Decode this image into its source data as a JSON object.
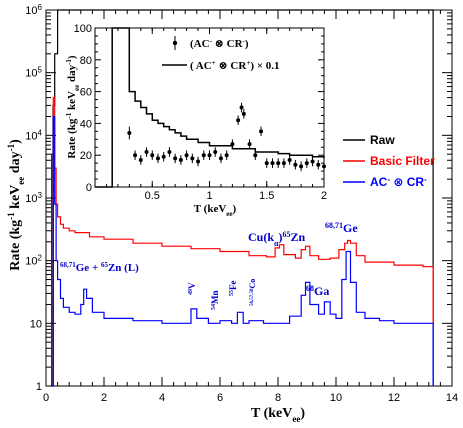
{
  "chart_data": [
    {
      "type": "line",
      "title": "",
      "xlabel": "T (keV",
      "xlabel_sub": "ee",
      "xlabel_close": ")",
      "ylabel": "Rate (kg",
      "ylabel_sup1": "-1",
      "ylabel_mid": " keV",
      "ylabel_sup2": "-1",
      "ylabel_sub": "ee",
      "ylabel_end": " day",
      "ylabel_sup3": "-1",
      "ylabel_close": ")",
      "xlim": [
        0,
        14
      ],
      "ylim": [
        1,
        1000000
      ],
      "yscale": "log",
      "x_ticks": [
        "0",
        "2",
        "4",
        "6",
        "8",
        "10",
        "12",
        "14"
      ],
      "y_ticks": [
        {
          "value": 1,
          "base": "1",
          "exp": ""
        },
        {
          "value": 10,
          "base": "10",
          "exp": ""
        },
        {
          "value": 100,
          "base": "10",
          "exp": "2"
        },
        {
          "value": 1000,
          "base": "10",
          "exp": "3"
        },
        {
          "value": 10000,
          "base": "10",
          "exp": "4"
        },
        {
          "value": 100000,
          "base": "10",
          "exp": "5"
        },
        {
          "value": 1000000,
          "base": "10",
          "exp": "6"
        }
      ],
      "legend_position": "right",
      "series": [
        {
          "name": "Raw",
          "color": "#000000",
          "x": [
            0.16,
            0.2,
            0.24,
            0.3,
            0.4,
            0.5,
            0.7,
            1,
            2,
            4,
            8,
            12,
            13.3,
            13.35
          ],
          "values": [
            1,
            5000,
            30000,
            200000,
            1000000,
            1000000,
            1000000,
            1000000,
            1000000,
            1000000,
            1000000,
            1000000,
            1000000,
            1
          ]
        },
        {
          "name": "Basic Filter",
          "color": "#ff0000",
          "x": [
            0.2,
            0.25,
            0.3,
            0.35,
            0.4,
            0.5,
            0.6,
            0.8,
            1.0,
            1.5,
            2.0,
            3.0,
            4.0,
            5.0,
            6.0,
            7.0,
            7.6,
            7.9,
            8.05,
            8.2,
            8.6,
            8.8,
            8.95,
            9.1,
            9.4,
            9.8,
            10.1,
            10.3,
            10.4,
            10.5,
            10.7,
            11.0,
            12.0,
            13.0,
            13.3,
            13.35
          ],
          "values": [
            1,
            40000,
            3000,
            800,
            500,
            380,
            330,
            300,
            280,
            240,
            220,
            190,
            170,
            155,
            140,
            120,
            115,
            160,
            180,
            125,
            110,
            150,
            170,
            120,
            105,
            110,
            150,
            190,
            210,
            190,
            120,
            95,
            85,
            80,
            80,
            1
          ]
        },
        {
          "name": "AC",
          "name_sup1": "-",
          "name_mid": " ⊗ CR",
          "name_sup2": "-",
          "color": "#0000ff",
          "x": [
            0.2,
            0.25,
            0.3,
            0.35,
            0.4,
            0.5,
            0.6,
            0.8,
            1.0,
            1.2,
            1.3,
            1.4,
            1.6,
            2.0,
            3.0,
            4.0,
            4.8,
            5.0,
            5.2,
            5.6,
            6.0,
            6.4,
            6.6,
            6.8,
            7.0,
            7.5,
            8.0,
            8.4,
            8.8,
            8.95,
            9.1,
            9.4,
            9.6,
            9.8,
            10.0,
            10.2,
            10.35,
            10.5,
            10.7,
            11.0,
            11.5,
            12.0,
            13.0,
            13.3,
            13.35
          ],
          "values": [
            1,
            20000,
            800,
            100,
            50,
            25,
            18,
            15,
            14,
            20,
            35,
            25,
            15,
            12,
            11,
            10,
            10,
            17,
            12,
            10,
            11,
            10,
            15,
            10,
            11,
            10,
            10,
            13,
            28,
            45,
            20,
            14,
            22,
            14,
            12,
            50,
            140,
            45,
            15,
            12,
            11,
            10,
            10,
            10,
            1
          ]
        }
      ],
      "annotations": [
        {
          "text": "68,71",
          "text2": "Ge + ",
          "text3": "65",
          "text4": "Zn (L)",
          "x": 1.3,
          "y": 60
        },
        {
          "text": "49",
          "text2": "V",
          "x": 4.95,
          "y": 20
        },
        {
          "text": "54",
          "text2": "Mn",
          "x": 5.5,
          "y": 16
        },
        {
          "text": "55",
          "text2": "Fe",
          "x": 6.4,
          "y": 18
        },
        {
          "text": "56,57,58",
          "text2": "Co",
          "x": 7.0,
          "y": 20
        },
        {
          "text": "Cu(k",
          "text2": "α",
          "text3": ")",
          "text4": "65",
          "text5": "Zn",
          "x": 8.1,
          "y": 150
        },
        {
          "text": "68",
          "text2": "Ga",
          "x": 9.3,
          "y": 45
        },
        {
          "text": "68,71",
          "text2": "Ge",
          "x": 10.25,
          "y": 280
        }
      ]
    },
    {
      "type": "scatter",
      "title": "",
      "xlabel": "T (keV",
      "xlabel_sub": "ee",
      "xlabel_close": ")",
      "ylabel": "Rate (kg",
      "ylabel_sup1": "-1",
      "ylabel_mid": " keV",
      "ylabel_sup2": "-1",
      "ylabel_sub": "ee",
      "ylabel_end": " day",
      "ylabel_sup3": "-1",
      "ylabel_close": ")",
      "xlim": [
        0.0,
        2.0
      ],
      "ylim": [
        0,
        100
      ],
      "x_ticks": [
        "0.5",
        "1",
        "1.5",
        "2"
      ],
      "x_tick_values": [
        0.5,
        1.0,
        1.5,
        2.0
      ],
      "y_ticks": [
        "0",
        "20",
        "40",
        "60",
        "80",
        "100"
      ],
      "y_tick_values": [
        0,
        20,
        40,
        60,
        80,
        100
      ],
      "legend_position": "top",
      "series": [
        {
          "name": "(AC",
          "name_sup1": "-",
          "name_mid": " ⊗ CR",
          "name_sup2": "-",
          "name_end": ")",
          "color": "#000000",
          "x": [
            0.3,
            0.35,
            0.4,
            0.45,
            0.5,
            0.55,
            0.6,
            0.65,
            0.7,
            0.75,
            0.8,
            0.85,
            0.9,
            0.95,
            1.0,
            1.05,
            1.1,
            1.15,
            1.2,
            1.25,
            1.28,
            1.3,
            1.35,
            1.4,
            1.45,
            1.5,
            1.55,
            1.6,
            1.65,
            1.7,
            1.75,
            1.8,
            1.85,
            1.9,
            1.95,
            2.0
          ],
          "values": [
            34,
            20,
            17,
            22,
            20,
            18,
            19,
            22,
            18,
            17,
            20,
            18,
            16,
            20,
            20,
            22,
            18,
            20,
            27,
            42,
            50,
            46,
            27,
            20,
            35,
            15,
            15,
            15,
            15,
            17,
            14,
            13,
            15,
            16,
            14,
            13
          ],
          "errors": [
            4,
            3,
            3,
            3,
            3,
            3,
            3,
            3,
            3,
            3,
            3,
            3,
            3,
            3,
            3,
            3,
            3,
            3,
            3,
            3,
            3,
            3,
            3,
            3,
            3,
            3,
            3,
            3,
            3,
            3,
            3,
            3,
            3,
            3,
            3,
            3
          ]
        },
        {
          "name": "( AC",
          "name_sup1": "+",
          "name_mid": " ⊗ CR",
          "name_sup2": "+",
          "name_end": ") × 0.1",
          "color": "#000000",
          "x": [
            0.0,
            0.15,
            0.15,
            0.2,
            0.25,
            0.3,
            0.35,
            0.4,
            0.45,
            0.5,
            0.55,
            0.6,
            0.65,
            0.7,
            0.75,
            0.8,
            0.85,
            0.9,
            0.95,
            1.0,
            1.1,
            1.2,
            1.3,
            1.4,
            1.5,
            1.6,
            1.7,
            1.8,
            1.9,
            2.0
          ],
          "values": [
            0,
            0,
            100,
            100,
            100,
            60,
            54,
            50,
            46,
            42,
            40,
            38,
            36,
            34,
            32,
            30,
            30,
            28,
            28,
            26,
            26,
            24,
            24,
            22,
            22,
            21,
            20,
            20,
            19,
            18
          ]
        }
      ]
    }
  ],
  "legend": {
    "raw": "Raw",
    "basic": "Basic Filter",
    "ac": "AC",
    "ac_sup": "-",
    "ac_mid": " ⊗ CR",
    "ac_sup2": "-"
  },
  "colors": {
    "raw": "#000000",
    "basic": "#ff0000",
    "ac": "#0000ff"
  }
}
